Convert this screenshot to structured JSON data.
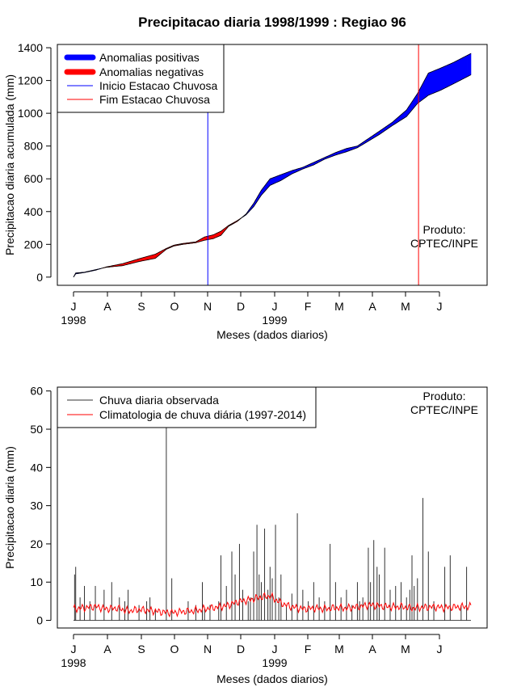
{
  "title": "Precipitacao diaria 1998/1999 : Regiao 96",
  "chart_data": [
    {
      "type": "area",
      "name": "accumulated-precipitation",
      "ylabel": "Precipitacao diaria acumulada (mm)",
      "xlabel": "Meses (dados diarios)",
      "ylim": [
        -50,
        1420
      ],
      "yticks": [
        0,
        200,
        400,
        600,
        800,
        1000,
        1200,
        1400
      ],
      "month_ticks": [
        "J",
        "A",
        "S",
        "O",
        "N",
        "D",
        "J",
        "F",
        "M",
        "A",
        "M",
        "J"
      ],
      "year_labels": [
        {
          "label": "1998",
          "month_index": 0
        },
        {
          "label": "1999",
          "month_index": 6
        }
      ],
      "legend": {
        "position": "top-left",
        "entries": [
          {
            "label": "Anomalias positivas",
            "color": "#0000ff",
            "style": "thick"
          },
          {
            "label": "Anomalias negativas",
            "color": "#ff0000",
            "style": "thick"
          },
          {
            "label": "Inicio Estacao Chuvosa",
            "color": "#0000ff",
            "style": "thin"
          },
          {
            "label": "Fim Estacao Chuvosa",
            "color": "#ff0000",
            "style": "thin"
          }
        ]
      },
      "annotation": [
        "Produto:",
        "CPTEC/INPE"
      ],
      "season_start_day": 123,
      "season_end_day": 316,
      "observed": {
        "day": [
          0,
          2,
          10,
          20,
          30,
          45,
          60,
          75,
          85,
          92,
          100,
          112,
          120,
          128,
          135,
          142,
          150,
          158,
          165,
          172,
          180,
          190,
          200,
          210,
          220,
          230,
          240,
          250,
          260,
          270,
          280,
          292,
          305,
          315,
          325,
          336,
          348,
          364
        ],
        "value": [
          0,
          25,
          30,
          45,
          60,
          70,
          95,
          115,
          170,
          190,
          200,
          210,
          225,
          235,
          255,
          310,
          340,
          385,
          450,
          530,
          600,
          625,
          650,
          670,
          700,
          730,
          760,
          785,
          800,
          845,
          890,
          945,
          1020,
          1120,
          1245,
          1275,
          1310,
          1365
        ]
      },
      "climatology": {
        "day": [
          0,
          2,
          10,
          20,
          30,
          45,
          60,
          75,
          85,
          92,
          100,
          112,
          120,
          128,
          135,
          142,
          150,
          158,
          165,
          172,
          180,
          190,
          200,
          210,
          220,
          230,
          240,
          250,
          260,
          270,
          280,
          292,
          305,
          315,
          325,
          336,
          348,
          364
        ],
        "value": [
          0,
          20,
          28,
          42,
          62,
          82,
          112,
          140,
          175,
          195,
          205,
          215,
          245,
          258,
          280,
          315,
          345,
          380,
          430,
          500,
          560,
          590,
          630,
          660,
          685,
          720,
          745,
          765,
          790,
          830,
          870,
          925,
          980,
          1060,
          1110,
          1140,
          1180,
          1235
        ]
      }
    },
    {
      "type": "line",
      "name": "daily-precipitation",
      "ylabel": "Precipitacao diaria (mm)",
      "xlabel": "Meses (dados diarios)",
      "ylim": [
        -2,
        61
      ],
      "yticks": [
        0,
        10,
        20,
        30,
        40,
        50,
        60
      ],
      "month_ticks": [
        "J",
        "A",
        "S",
        "O",
        "N",
        "D",
        "J",
        "F",
        "M",
        "A",
        "M",
        "J"
      ],
      "year_labels": [
        {
          "label": "1998",
          "month_index": 0
        },
        {
          "label": "1999",
          "month_index": 6
        }
      ],
      "legend": {
        "position": "top-left",
        "entries": [
          {
            "label": "Chuva diaria observada",
            "color": "#333333"
          },
          {
            "label": "Climatologia de chuva diária (1997-2014)",
            "color": "#ff0000"
          }
        ]
      },
      "annotation": [
        "Produto:",
        "CPTEC/INPE"
      ],
      "observed_spikes": {
        "day": [
          1,
          2,
          6,
          10,
          15,
          20,
          28,
          35,
          42,
          47,
          50,
          60,
          67,
          70,
          75,
          85,
          90,
          105,
          112,
          118,
          120,
          125,
          133,
          135,
          140,
          145,
          148,
          152,
          155,
          160,
          162,
          165,
          168,
          170,
          172,
          175,
          178,
          180,
          182,
          185,
          188,
          190,
          195,
          200,
          205,
          210,
          215,
          220,
          225,
          230,
          235,
          240,
          245,
          250,
          255,
          260,
          262,
          265,
          270,
          272,
          275,
          278,
          280,
          285,
          290,
          295,
          300,
          305,
          308,
          310,
          312,
          315,
          320,
          325,
          330,
          340,
          345,
          355,
          360
        ],
        "value": [
          12,
          14,
          6,
          9,
          5,
          9,
          8,
          10,
          6,
          5,
          8,
          4,
          5,
          6,
          3,
          52,
          11,
          5,
          4,
          10,
          3,
          4,
          5,
          17,
          9,
          18,
          12,
          20,
          8,
          5,
          6,
          18,
          25,
          12,
          10,
          24,
          8,
          14,
          11,
          25,
          6,
          12,
          4,
          7,
          28,
          8,
          5,
          10,
          6,
          5,
          20,
          10,
          6,
          8,
          4,
          10,
          5,
          6,
          19,
          10,
          21,
          14,
          12,
          19,
          8,
          9,
          10,
          6,
          8,
          17,
          9,
          11,
          32,
          18,
          5,
          14,
          17,
          4,
          14
        ]
      },
      "climatology": {
        "day": [
          0,
          10,
          20,
          30,
          40,
          50,
          60,
          70,
          80,
          90,
          100,
          110,
          120,
          130,
          140,
          150,
          160,
          170,
          180,
          190,
          200,
          210,
          220,
          230,
          240,
          250,
          260,
          270,
          280,
          290,
          300,
          310,
          320,
          330,
          340,
          350,
          364
        ],
        "value": [
          3,
          3.3,
          3.6,
          3,
          3.2,
          2.5,
          2.8,
          2.6,
          2.2,
          2,
          2.3,
          2.5,
          3,
          3.4,
          3.8,
          4.8,
          5.3,
          6,
          6.4,
          4.5,
          3.5,
          3,
          3.2,
          3,
          3.3,
          3.2,
          3.5,
          4,
          3.8,
          3.5,
          3.6,
          3.2,
          3.4,
          3.5,
          3.3,
          3.5,
          3.6
        ]
      }
    }
  ],
  "bottom_legend_labels": [
    "Chuva diaria observada",
    "Climatologia de chuva diária (1997-2014)"
  ]
}
